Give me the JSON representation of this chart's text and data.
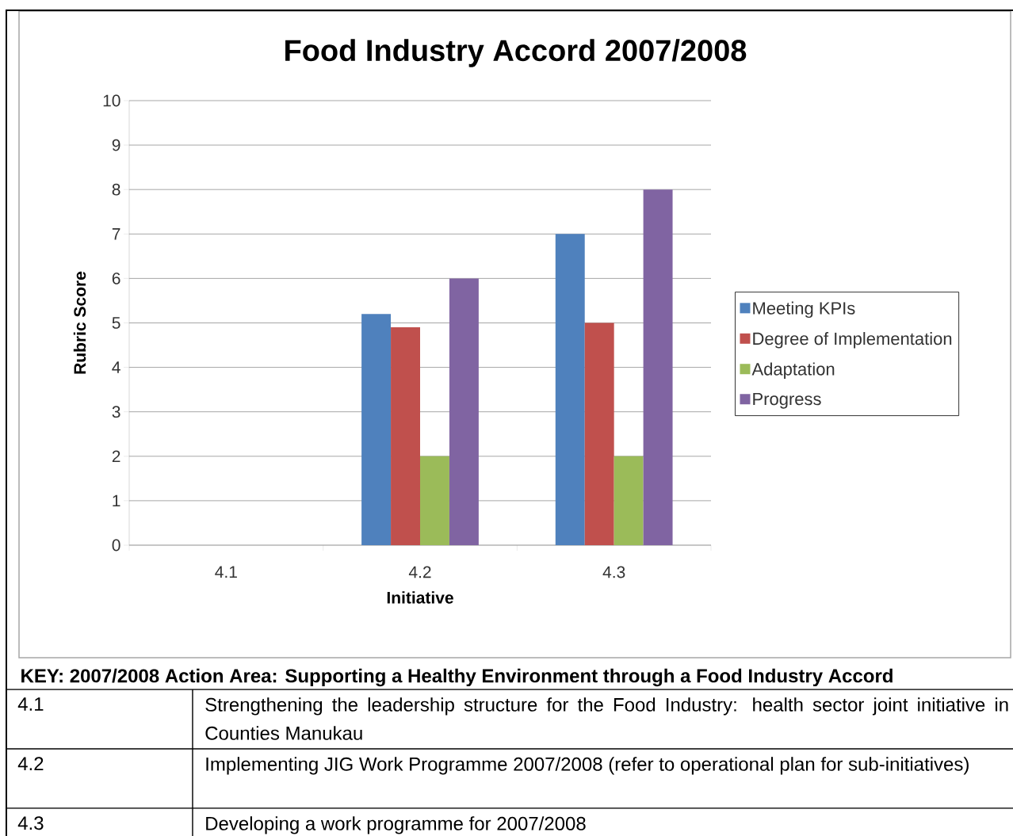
{
  "chart_data": {
    "type": "bar",
    "title": "Food Industry Accord 2007/2008",
    "xlabel": "Initiative",
    "ylabel": "Rubric Score",
    "categories": [
      "4.1",
      "4.2",
      "4.3"
    ],
    "series": [
      {
        "name": "Meeting KPIs",
        "color": "#4f81bd",
        "values": [
          null,
          5.2,
          7
        ]
      },
      {
        "name": "Degree of Implementation",
        "color": "#c0504d",
        "values": [
          null,
          4.9,
          5.0
        ]
      },
      {
        "name": "Adaptation",
        "color": "#9bbb59",
        "values": [
          null,
          2,
          2
        ]
      },
      {
        "name": "Progress",
        "color": "#8064a2",
        "values": [
          null,
          6,
          8
        ]
      }
    ],
    "ylim": [
      0,
      10
    ],
    "yticks": [
      0,
      1,
      2,
      3,
      4,
      5,
      6,
      7,
      8,
      9,
      10
    ],
    "grid": "y",
    "legend": "right",
    "annotations": [
      "KEY: 2007/2008 Action Area: Supporting a Healthy Environment through a Food Industry Accord",
      "4.1",
      "Strengthening the leadership structure for the Food Industry: health sector joint initiative in Counties Manukau",
      "4.2",
      "Implementing JIG Work Programme 2007/2008 (refer to operational plan for sub-initiatives)",
      "4.3",
      "Developing a work programme for 2007/2008"
    ]
  }
}
